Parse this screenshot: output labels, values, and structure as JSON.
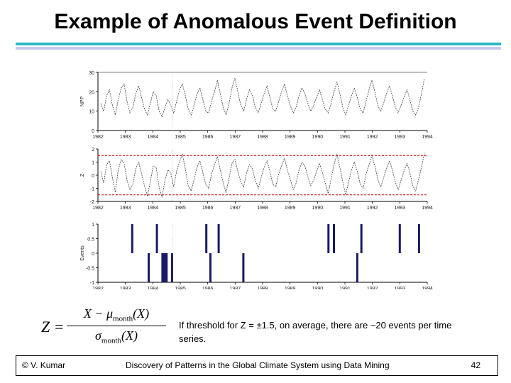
{
  "slide": {
    "title": "Example of Anomalous Event Definition",
    "note": "If threshold for Z = ±1.5, on average, there are ~20 events per time series.",
    "formula": {
      "lhs": "Z =",
      "numerator": "X − μ",
      "numerator_sub": "month",
      "numerator_tail": "(X)",
      "denominator": "σ",
      "denominator_sub": "month",
      "denominator_tail": "(X)"
    },
    "footer": {
      "author": "© V. Kumar",
      "course": "Discovery of Patterns in the Global Climate System using Data Mining",
      "page": "42"
    },
    "colors": {
      "title_rule": "#2fb9c9",
      "title_rule2": "#c9c9ee",
      "series": "#2a2a2a",
      "threshold": "#cc0000",
      "events": "#1a1a66"
    }
  },
  "chart_data": [
    {
      "type": "line",
      "ylabel": "NPP",
      "ylim": [
        0,
        30
      ],
      "yticks": [
        "30",
        "20",
        "10",
        "0"
      ],
      "xticks": [
        "1982",
        "1983",
        "1984",
        "1985",
        "1986",
        "1987",
        "1988",
        "1989",
        "1990",
        "1991",
        "1992",
        "1993",
        "1994"
      ],
      "values": [
        14,
        10,
        18,
        21,
        13,
        8,
        16,
        22,
        24,
        15,
        9,
        12,
        19,
        23,
        17,
        11,
        8,
        14,
        20,
        18,
        10,
        7,
        12,
        16,
        13,
        9,
        15,
        21,
        24,
        18,
        11,
        8,
        13,
        19,
        22,
        16,
        10,
        9,
        15,
        20,
        26,
        19,
        12,
        8,
        14,
        22,
        27,
        20,
        13,
        10,
        16,
        21,
        18,
        12,
        9,
        14,
        19,
        23,
        17,
        11,
        10,
        15,
        20,
        24,
        18,
        13,
        9,
        12,
        18,
        22,
        19,
        14,
        10,
        13,
        17,
        21,
        16,
        11,
        9,
        14,
        20,
        25,
        19,
        12,
        8,
        13,
        18,
        22,
        17,
        11,
        9,
        15,
        21,
        26,
        20,
        13,
        10,
        14,
        19,
        23,
        18,
        12,
        9,
        13,
        17,
        21,
        16,
        10,
        8,
        12,
        19,
        27
      ]
    },
    {
      "type": "line",
      "ylabel": "Z",
      "ylim": [
        -2,
        2
      ],
      "yticks": [
        "2",
        "1",
        "0",
        "-1",
        "-2"
      ],
      "xticks": [
        "1982",
        "1983",
        "1984",
        "1985",
        "1986",
        "1987",
        "1988",
        "1989",
        "1990",
        "1991",
        "1992",
        "1993",
        "1994"
      ],
      "thresholds": [
        1.5,
        -1.5
      ],
      "values": [
        0.3,
        -0.6,
        0.8,
        1.1,
        -0.2,
        -1.3,
        0.4,
        1.2,
        0.9,
        -0.4,
        -1.1,
        -0.7,
        0.5,
        1.0,
        0.1,
        -0.8,
        -1.6,
        -0.5,
        0.7,
        0.6,
        -0.9,
        -1.7,
        -0.4,
        0.4,
        0.2,
        -0.9,
        0.3,
        1.0,
        1.6,
        0.5,
        -0.8,
        -1.2,
        -0.3,
        0.6,
        1.1,
        0.2,
        -0.7,
        -1.0,
        0.1,
        0.8,
        1.4,
        0.4,
        -0.6,
        -1.3,
        -0.2,
        0.9,
        1.2,
        0.3,
        -0.5,
        -0.9,
        0.2,
        0.8,
        0.5,
        -0.4,
        -1.0,
        -0.2,
        0.6,
        1.1,
        0.3,
        -0.7,
        -0.9,
        0.1,
        0.7,
        1.3,
        0.4,
        -0.3,
        -1.1,
        -0.6,
        0.4,
        1.0,
        0.7,
        -0.1,
        -0.8,
        -0.4,
        0.3,
        0.9,
        0.2,
        -0.6,
        -1.4,
        -0.3,
        0.8,
        1.6,
        0.6,
        -0.5,
        -1.5,
        -0.5,
        0.4,
        1.0,
        0.3,
        -0.7,
        -1.0,
        0.1,
        0.8,
        1.5,
        0.7,
        -0.3,
        -0.9,
        -0.2,
        0.5,
        1.1,
        0.4,
        -0.5,
        -1.1,
        -0.4,
        0.3,
        0.9,
        0.2,
        -0.8,
        -1.2,
        -0.3,
        0.6,
        1.7
      ]
    },
    {
      "type": "bar",
      "ylabel": "Events",
      "ylim": [
        -1,
        1
      ],
      "yticks": [
        "1",
        "0.5",
        "0",
        "-0.5",
        "-1"
      ],
      "xticks": [
        "1982",
        "1983",
        "1984",
        "1985",
        "1986",
        "1987",
        "1988",
        "1989",
        "1990",
        "1991",
        "1992",
        "1993",
        "1994"
      ],
      "events": [
        {
          "year": 1983.25,
          "value": 1
        },
        {
          "year": 1983.85,
          "value": -1
        },
        {
          "year": 1984.15,
          "value": 1
        },
        {
          "year": 1984.35,
          "value": -1
        },
        {
          "year": 1984.4,
          "value": -1
        },
        {
          "year": 1984.45,
          "value": -1
        },
        {
          "year": 1984.5,
          "value": -1
        },
        {
          "year": 1984.7,
          "value": -1
        },
        {
          "year": 1985.95,
          "value": 1
        },
        {
          "year": 1986.1,
          "value": -1
        },
        {
          "year": 1986.4,
          "value": 1
        },
        {
          "year": 1987.3,
          "value": -1
        },
        {
          "year": 1990.4,
          "value": 1
        },
        {
          "year": 1990.6,
          "value": 1
        },
        {
          "year": 1991.45,
          "value": -1
        },
        {
          "year": 1991.6,
          "value": 1
        },
        {
          "year": 1993.0,
          "value": 1
        },
        {
          "year": 1993.7,
          "value": 1
        }
      ]
    }
  ]
}
